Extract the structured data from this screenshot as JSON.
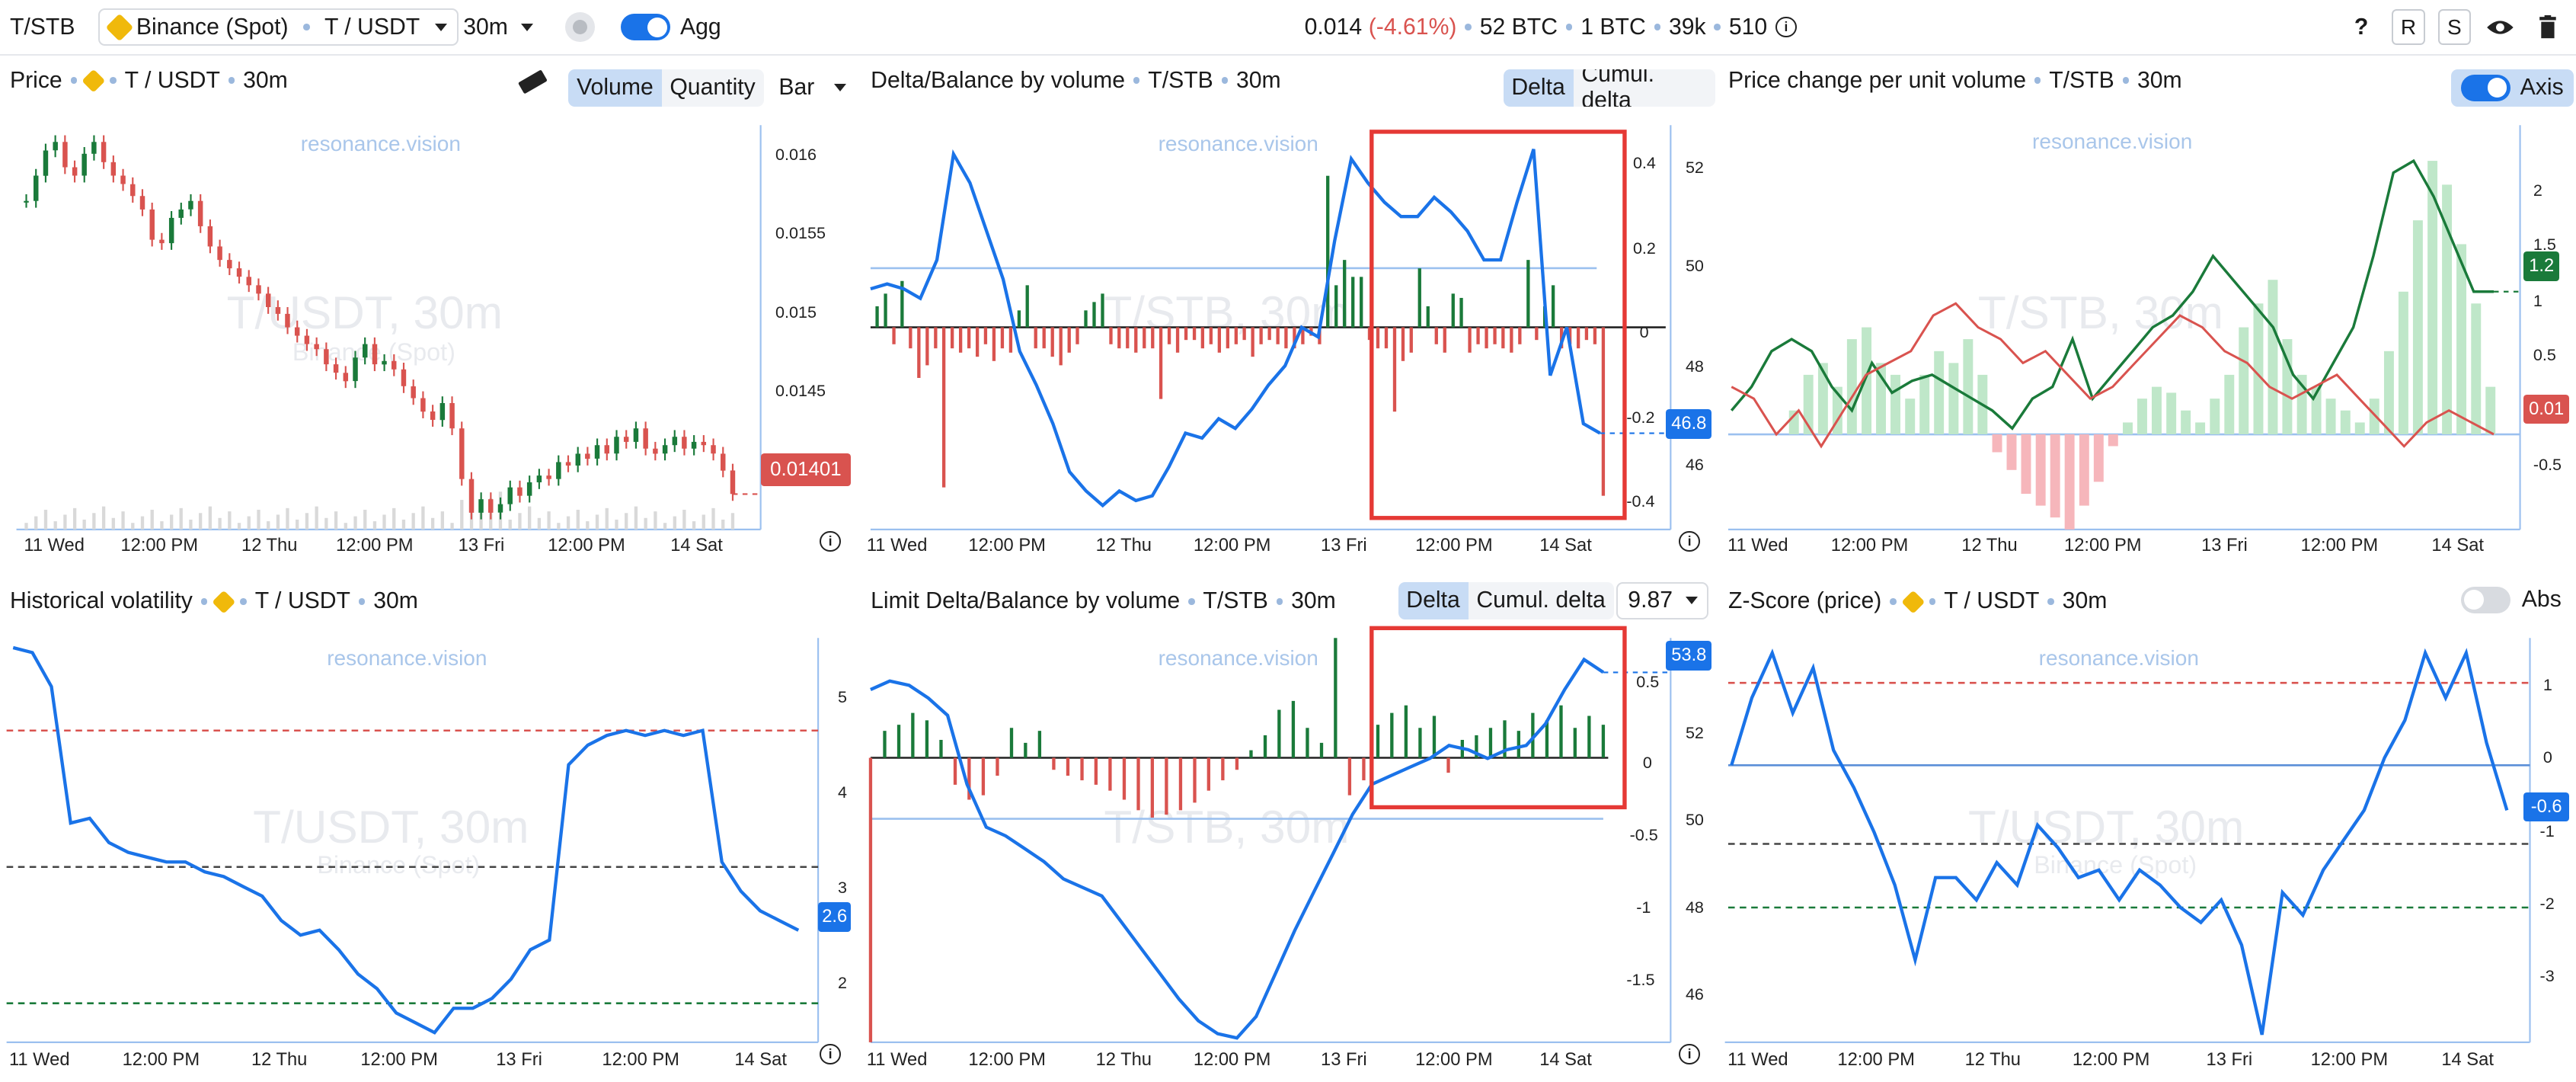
{
  "header": {
    "pair": "T/STB",
    "exchange": "Binance (Spot)",
    "symbol": "T / USDT",
    "timeframe": "30m",
    "agg_label": "Agg",
    "price": "0.014",
    "change": "(-4.61%)",
    "vol1": "52 BTC",
    "vol2": "1 BTC",
    "vol3": "39k",
    "vol4": "510",
    "help": "?",
    "r": "R",
    "s": "S"
  },
  "colors": {
    "green": "#1a7a3a",
    "red": "#d9534f",
    "blue": "#1a73e8",
    "highlight": "#e53935"
  },
  "watermark": "resonance.vision",
  "x_labels": [
    "11 Wed",
    "12:00 PM",
    "12 Thu",
    "12:00 PM",
    "13 Fri",
    "12:00 PM",
    "14 Sat"
  ],
  "panels": {
    "price": {
      "title": "Price",
      "symbol": "T / USDT",
      "tf": "30m",
      "seg": [
        "Volume",
        "Quantity"
      ],
      "type": "Bar",
      "wm": "T/USDT, 30m",
      "wm2": "Binance (Spot)",
      "y_labels": [
        "0.016",
        "0.0155",
        "0.015",
        "0.0145"
      ],
      "last": "0.01401",
      "icon": "ruler-icon"
    },
    "delta": {
      "title": "Delta/Balance by volume",
      "symbol": "T/STB",
      "tf": "30m",
      "seg": [
        "Delta",
        "Cumul. delta"
      ],
      "wm": "T/STB, 30m",
      "y_left": [
        "0.4",
        "0.2",
        "0",
        "-0.2",
        "-0.4"
      ],
      "y_right": [
        "52",
        "50",
        "48",
        "46"
      ],
      "last": "46.8"
    },
    "pcv": {
      "title": "Price change per unit volume",
      "symbol": "T/STB",
      "tf": "30m",
      "axis_label": "Axis",
      "wm": "T/STB, 30m",
      "y_labels": [
        "2",
        "1.5",
        "1",
        "0.5",
        "0",
        "-0.5"
      ],
      "green_last": "1.2",
      "red_last": "0.01"
    },
    "hv": {
      "title": "Historical volatility",
      "symbol": "T / USDT",
      "tf": "30m",
      "wm": "T/USDT, 30m",
      "wm2": "Binance (Spot)",
      "y_labels": [
        "5",
        "4",
        "3",
        "2"
      ],
      "last": "2.6"
    },
    "limit": {
      "title": "Limit Delta/Balance by volume",
      "symbol": "T/STB",
      "tf": "30m",
      "seg": [
        "Delta",
        "Cumul. delta"
      ],
      "select": "9.87",
      "wm": "T/STB, 30m",
      "y_left": [
        "0.5",
        "0",
        "-0.5",
        "-1",
        "-1.5"
      ],
      "y_right": [
        "52",
        "50",
        "48",
        "46"
      ],
      "last": "53.8"
    },
    "zscore": {
      "title": "Z-Score (price)",
      "symbol": "T / USDT",
      "tf": "30m",
      "abs_label": "Abs",
      "wm": "T/USDT, 30m",
      "wm2": "Binance (Spot)",
      "y_labels": [
        "1",
        "0",
        "-1",
        "-2",
        "-3"
      ],
      "last": "-0.6"
    }
  },
  "chart_data": [
    {
      "panel": "price",
      "type": "candlestick",
      "title": "Price T / USDT 30m",
      "y_range": [
        0.0138,
        0.0162
      ],
      "close": [
        0.01575,
        0.0159,
        0.01605,
        0.0161,
        0.01595,
        0.0159,
        0.01603,
        0.0161,
        0.01598,
        0.0159,
        0.01585,
        0.01578,
        0.0157,
        0.01552,
        0.0155,
        0.01565,
        0.0157,
        0.01575,
        0.0156,
        0.01548,
        0.0154,
        0.01535,
        0.0153,
        0.01525,
        0.0152,
        0.01512,
        0.01508,
        0.015,
        0.01495,
        0.0149,
        0.01487,
        0.01478,
        0.01473,
        0.01468,
        0.01482,
        0.0149,
        0.01478,
        0.0148,
        0.01475,
        0.01465,
        0.01458,
        0.0145,
        0.01445,
        0.01455,
        0.0144,
        0.0141,
        0.0139,
        0.01398,
        0.0139,
        0.01395,
        0.01405,
        0.014,
        0.01408,
        0.01412,
        0.0141,
        0.0142,
        0.01418,
        0.01425,
        0.01422,
        0.0143,
        0.01425,
        0.01435,
        0.01432,
        0.0144,
        0.01428,
        0.01425,
        0.0143,
        0.01435,
        0.01428,
        0.01432,
        0.0143,
        0.01425,
        0.01415,
        0.01401
      ]
    },
    {
      "panel": "delta",
      "type": "bar+line",
      "series": [
        {
          "name": "delta",
          "range": [
            -0.48,
            0.48
          ],
          "values": [
            0.05,
            0.08,
            -0.04,
            0.11,
            -0.05,
            -0.12,
            -0.09,
            -0.05,
            -0.38,
            -0.05,
            -0.06,
            -0.05,
            -0.07,
            -0.04,
            -0.08,
            -0.05,
            -0.06,
            0.04,
            0.1,
            -0.05,
            -0.05,
            -0.07,
            -0.09,
            -0.06,
            -0.04,
            0.04,
            0.06,
            0.08,
            -0.04,
            -0.05,
            -0.05,
            -0.06,
            -0.05,
            -0.05,
            -0.17,
            -0.04,
            -0.06,
            -0.03,
            -0.03,
            -0.05,
            -0.04,
            -0.06,
            -0.05,
            -0.04,
            -0.03,
            -0.07,
            -0.04,
            -0.03,
            -0.04,
            -0.05,
            -0.05,
            -0.04,
            -0.02,
            -0.04,
            0.36,
            0.1,
            0.16,
            0.12,
            0.12,
            -0.03,
            -0.05,
            -0.05,
            -0.2,
            -0.08,
            -0.06,
            0.14,
            0.05,
            -0.04,
            -0.06,
            0.08,
            0.07,
            -0.06,
            -0.04,
            -0.05,
            -0.04,
            -0.05,
            -0.06,
            -0.04,
            0.16,
            -0.03,
            0.05,
            0.1,
            -0.05,
            -0.04,
            -0.05,
            -0.03,
            -0.04,
            -0.4
          ]
        },
        {
          "name": "cumulative",
          "range": [
            44.8,
            53.2
          ],
          "values": [
            49.8,
            49.9,
            49.8,
            49.6,
            50.4,
            52.6,
            52.0,
            51.0,
            50.0,
            48.5,
            47.8,
            47.0,
            46.0,
            45.6,
            45.3,
            45.6,
            45.4,
            45.5,
            46.1,
            46.8,
            46.7,
            47.1,
            46.9,
            47.3,
            47.8,
            48.2,
            49.0,
            48.8,
            50.8,
            52.5,
            52.0,
            51.6,
            51.3,
            51.3,
            51.7,
            51.4,
            51.0,
            50.4,
            50.4,
            51.6,
            52.7,
            48.0,
            49.0,
            47.0,
            46.8
          ]
        }
      ]
    },
    {
      "panel": "pcv",
      "type": "bar+line",
      "series": [
        {
          "name": "bars",
          "range": [
            -0.8,
            2.6
          ],
          "values": [
            0.2,
            0.5,
            0.6,
            0.4,
            0.8,
            0.9,
            0.6,
            0.5,
            0.3,
            0.5,
            0.7,
            0.6,
            0.8,
            0.5,
            -0.15,
            -0.3,
            -0.5,
            -0.6,
            -0.7,
            -0.8,
            -0.6,
            -0.4,
            -0.1,
            0.1,
            0.3,
            0.4,
            0.35,
            0.2,
            0.1,
            0.3,
            0.5,
            0.9,
            1.1,
            1.3,
            0.8,
            0.5,
            0.4,
            0.3,
            0.2,
            0.1,
            0.3,
            0.7,
            1.2,
            1.8,
            2.3,
            2.1,
            1.6,
            1.1,
            0.4
          ]
        },
        {
          "name": "green",
          "range": [
            -0.8,
            2.6
          ],
          "values": [
            0.2,
            0.4,
            0.7,
            0.8,
            0.7,
            0.4,
            0.2,
            0.6,
            0.35,
            0.45,
            0.5,
            0.4,
            0.3,
            0.2,
            0.05,
            0.3,
            0.4,
            0.8,
            0.3,
            0.5,
            0.7,
            0.9,
            1.0,
            1.2,
            1.5,
            1.3,
            1.1,
            0.9,
            0.5,
            0.3,
            0.6,
            0.9,
            1.5,
            2.2,
            2.3,
            2.0,
            1.6,
            1.2,
            1.2
          ]
        },
        {
          "name": "red",
          "range": [
            -0.8,
            2.6
          ],
          "values": [
            0.4,
            0.3,
            0.0,
            0.2,
            -0.1,
            0.2,
            0.5,
            0.6,
            0.7,
            1.0,
            1.1,
            0.9,
            0.8,
            0.6,
            0.7,
            0.5,
            0.3,
            0.4,
            0.6,
            0.8,
            1.0,
            0.9,
            0.7,
            0.6,
            0.4,
            0.3,
            0.4,
            0.5,
            0.3,
            0.1,
            -0.1,
            0.1,
            0.2,
            0.1,
            0.0
          ]
        }
      ]
    },
    {
      "panel": "hv",
      "type": "line",
      "range": [
        1.45,
        5.6
      ],
      "levels": {
        "upper": 4.65,
        "middle": 3.25,
        "lower": 1.85
      },
      "values": [
        5.5,
        5.45,
        5.1,
        3.7,
        3.75,
        3.5,
        3.4,
        3.35,
        3.3,
        3.3,
        3.2,
        3.15,
        3.05,
        2.95,
        2.7,
        2.55,
        2.6,
        2.4,
        2.15,
        2.0,
        1.75,
        1.65,
        1.55,
        1.8,
        1.8,
        1.9,
        2.1,
        2.4,
        2.5,
        4.3,
        4.5,
        4.6,
        4.65,
        4.6,
        4.65,
        4.6,
        4.65,
        3.3,
        3.0,
        2.8,
        2.7,
        2.6
      ]
    },
    {
      "panel": "limit",
      "type": "bar+line",
      "series": [
        {
          "name": "delta",
          "range": [
            -1.9,
            0.8
          ],
          "values": [
            -1.9,
            0.18,
            0.22,
            0.3,
            0.25,
            0.12,
            -0.18,
            -0.28,
            -0.25,
            -0.12,
            0.2,
            0.1,
            0.18,
            -0.08,
            -0.12,
            -0.15,
            -0.18,
            -0.22,
            -0.28,
            -0.35,
            -0.4,
            -0.38,
            -0.35,
            -0.3,
            -0.22,
            -0.15,
            -0.08,
            0.05,
            0.15,
            0.32,
            0.38,
            0.2,
            0.1,
            0.8,
            -0.25,
            -0.15,
            0.22,
            0.3,
            0.35,
            0.2,
            0.28,
            -0.1,
            0.12,
            0.15,
            0.2,
            0.25,
            0.18,
            0.3,
            0.25,
            0.35,
            0.2,
            0.28,
            0.22
          ]
        },
        {
          "name": "cumulative",
          "range": [
            45.2,
            54.6
          ],
          "values": [
            53.4,
            53.6,
            53.5,
            53.2,
            52.8,
            51.2,
            50.2,
            50.0,
            49.7,
            49.4,
            49.0,
            48.8,
            48.6,
            48.0,
            47.4,
            46.8,
            46.2,
            45.7,
            45.4,
            45.3,
            45.8,
            46.8,
            47.8,
            48.7,
            49.6,
            50.5,
            51.2,
            51.4,
            51.6,
            51.8,
            52.1,
            52.0,
            51.8,
            52.0,
            52.1,
            52.6,
            53.4,
            54.1,
            53.8
          ]
        }
      ]
    },
    {
      "panel": "zscore",
      "type": "line",
      "range": [
        -3.7,
        1.7
      ],
      "levels": {
        "upper": 1.1,
        "zero": 0.0,
        "lower1": -1.05,
        "lower2": -1.9
      },
      "values": [
        0.0,
        0.9,
        1.5,
        0.7,
        1.3,
        0.2,
        -0.3,
        -0.9,
        -1.6,
        -2.6,
        -1.5,
        -1.5,
        -1.8,
        -1.3,
        -1.6,
        -0.8,
        -1.1,
        -1.5,
        -1.4,
        -1.8,
        -1.4,
        -1.6,
        -1.9,
        -2.1,
        -1.8,
        -2.4,
        -3.6,
        -1.7,
        -2.0,
        -1.4,
        -1.0,
        -0.6,
        0.1,
        0.6,
        1.5,
        0.9,
        1.5,
        0.3,
        -0.6
      ]
    }
  ]
}
